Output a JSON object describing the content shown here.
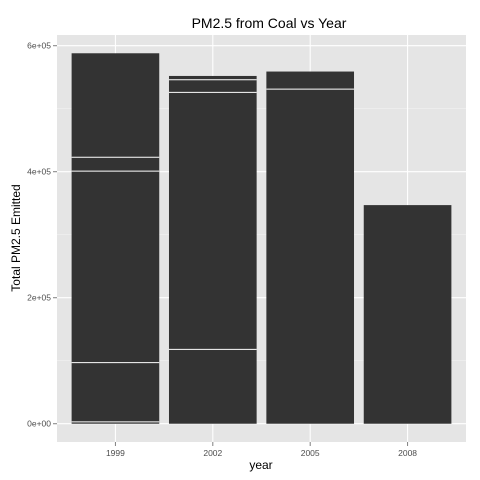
{
  "chart_data": {
    "type": "bar",
    "title": "PM2.5 from Coal vs Year",
    "xlabel": "year",
    "ylabel": "Total PM2.5 Emitted",
    "categories": [
      "1999",
      "2002",
      "2005",
      "2008"
    ],
    "values": [
      588000,
      552000,
      559000,
      347000
    ],
    "stacked_segment_boundaries": [
      [
        3000,
        97000,
        401000,
        423000
      ],
      [
        118000,
        526000,
        546000
      ],
      [
        531000
      ],
      []
    ],
    "yticks": [
      {
        "value": 0,
        "label": "0e+00"
      },
      {
        "value": 200000,
        "label": "2e+05"
      },
      {
        "value": 400000,
        "label": "4e+05"
      },
      {
        "value": 600000,
        "label": "6e+05"
      }
    ],
    "ylim": [
      -29000,
      617000
    ],
    "grid": true,
    "colors": {
      "panel": "#e5e5e5",
      "grid_major": "#ffffff",
      "grid_minor": "#f2f2f2",
      "bar_fill": "#333333",
      "segment_line": "#ffffff",
      "tick": "#7f7f7f"
    }
  }
}
